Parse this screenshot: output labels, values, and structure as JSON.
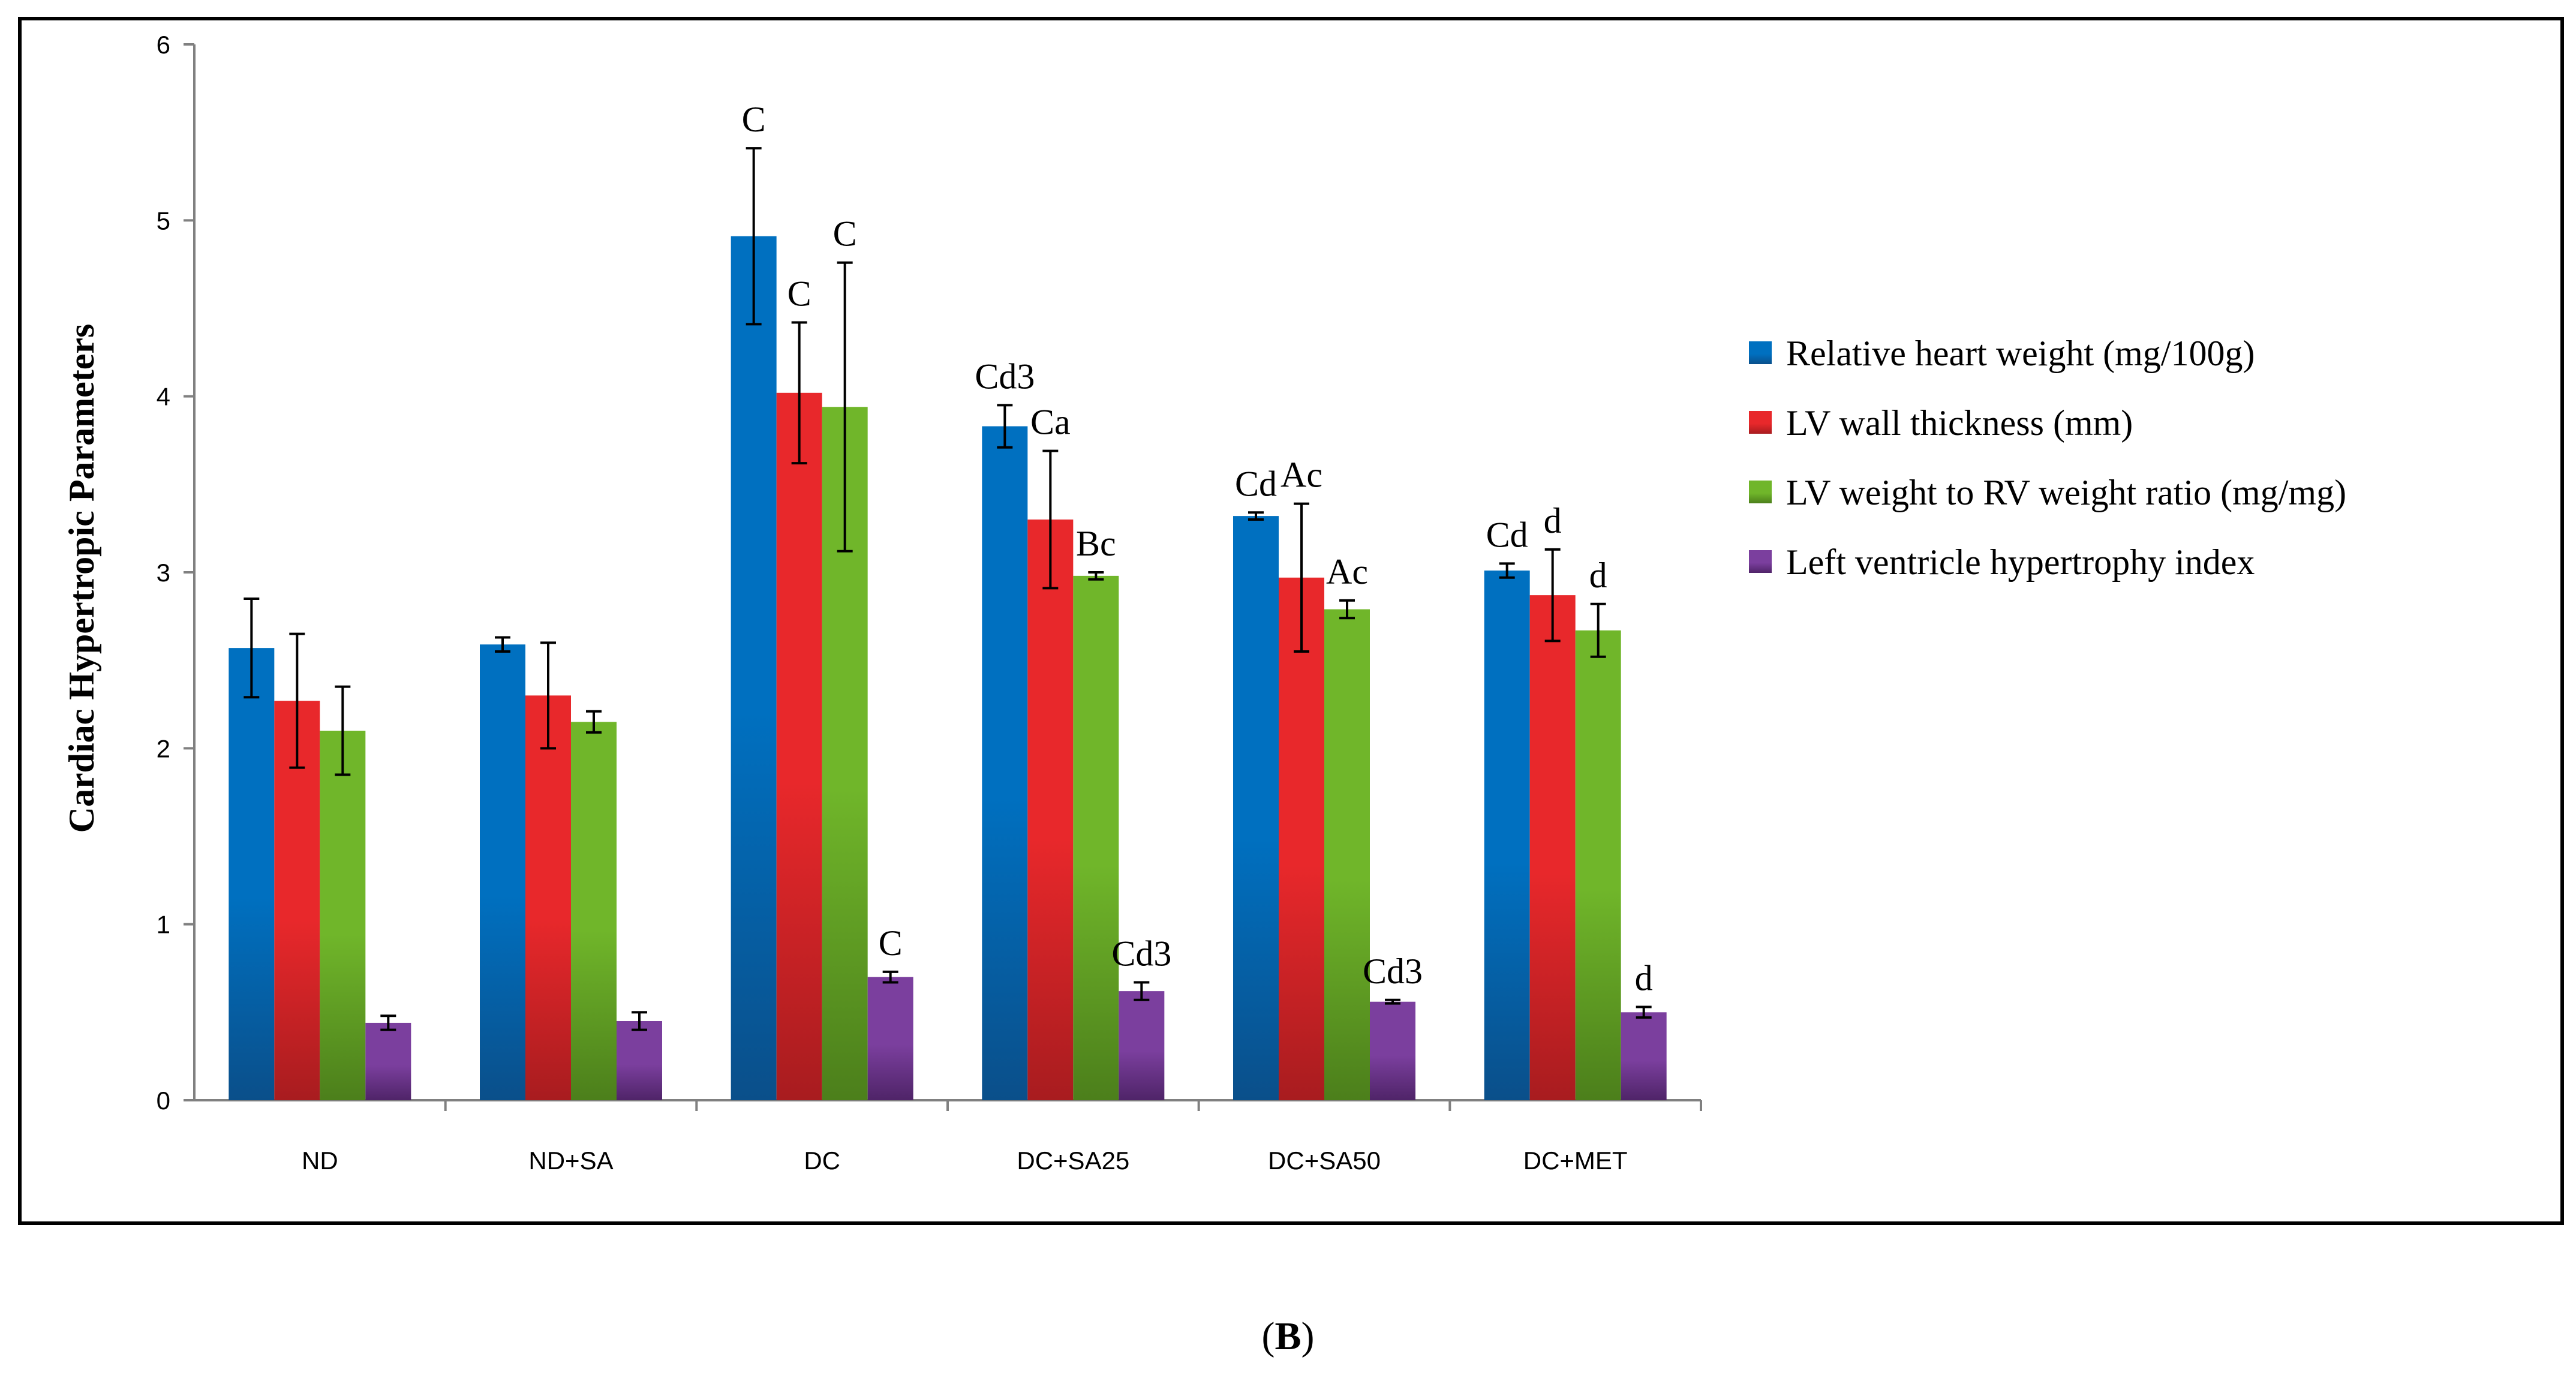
{
  "caption": {
    "open": "(",
    "label": "B",
    "close": ")"
  },
  "colors": {
    "series": [
      "#0070C0",
      "#E8282B",
      "#70B62A",
      "#7B3F9E"
    ],
    "series_dark": [
      "#0a4f8a",
      "#a81c1f",
      "#4c7f1b",
      "#4f2468"
    ],
    "axis": "#808080"
  },
  "chart_data": {
    "type": "bar",
    "title": "",
    "xlabel": "",
    "ylabel": "Cardiac Hypertropic Parameters",
    "ylim": [
      0,
      6
    ],
    "yticks": [
      "0",
      "1",
      "2",
      "3",
      "4",
      "5",
      "6"
    ],
    "grid": false,
    "legend_position": "right",
    "categories": [
      "ND",
      "ND+SA",
      "DC",
      "DC+SA25",
      "DC+SA50",
      "DC+MET"
    ],
    "series": [
      {
        "name": "Relative heart weight (mg/100g)",
        "values": [
          2.57,
          2.59,
          4.91,
          3.83,
          3.32,
          3.01
        ],
        "errors": [
          0.28,
          0.04,
          0.5,
          0.12,
          0.02,
          0.04
        ],
        "annotations": [
          "",
          "",
          "C",
          "Cd3",
          "Cd",
          "Cd"
        ]
      },
      {
        "name": "LV wall thickness (mm)",
        "values": [
          2.27,
          2.3,
          4.02,
          3.3,
          2.97,
          2.87
        ],
        "errors": [
          0.38,
          0.3,
          0.4,
          0.39,
          0.42,
          0.26
        ],
        "annotations": [
          "",
          "",
          "C",
          "Ca",
          "Ac",
          "d"
        ]
      },
      {
        "name": "LV weight to RV weight ratio (mg/mg)",
        "values": [
          2.1,
          2.15,
          3.94,
          2.98,
          2.79,
          2.67
        ],
        "errors": [
          0.25,
          0.06,
          0.82,
          0.02,
          0.05,
          0.15
        ],
        "annotations": [
          "",
          "",
          "C",
          "Bc",
          "Ac",
          "d"
        ]
      },
      {
        "name": "Left ventricle hypertrophy index",
        "values": [
          0.44,
          0.45,
          0.7,
          0.62,
          0.56,
          0.5
        ],
        "errors": [
          0.04,
          0.05,
          0.03,
          0.05,
          0.01,
          0.03
        ],
        "annotations": [
          "",
          "",
          "C",
          "Cd3",
          "Cd3",
          "d"
        ]
      }
    ]
  }
}
